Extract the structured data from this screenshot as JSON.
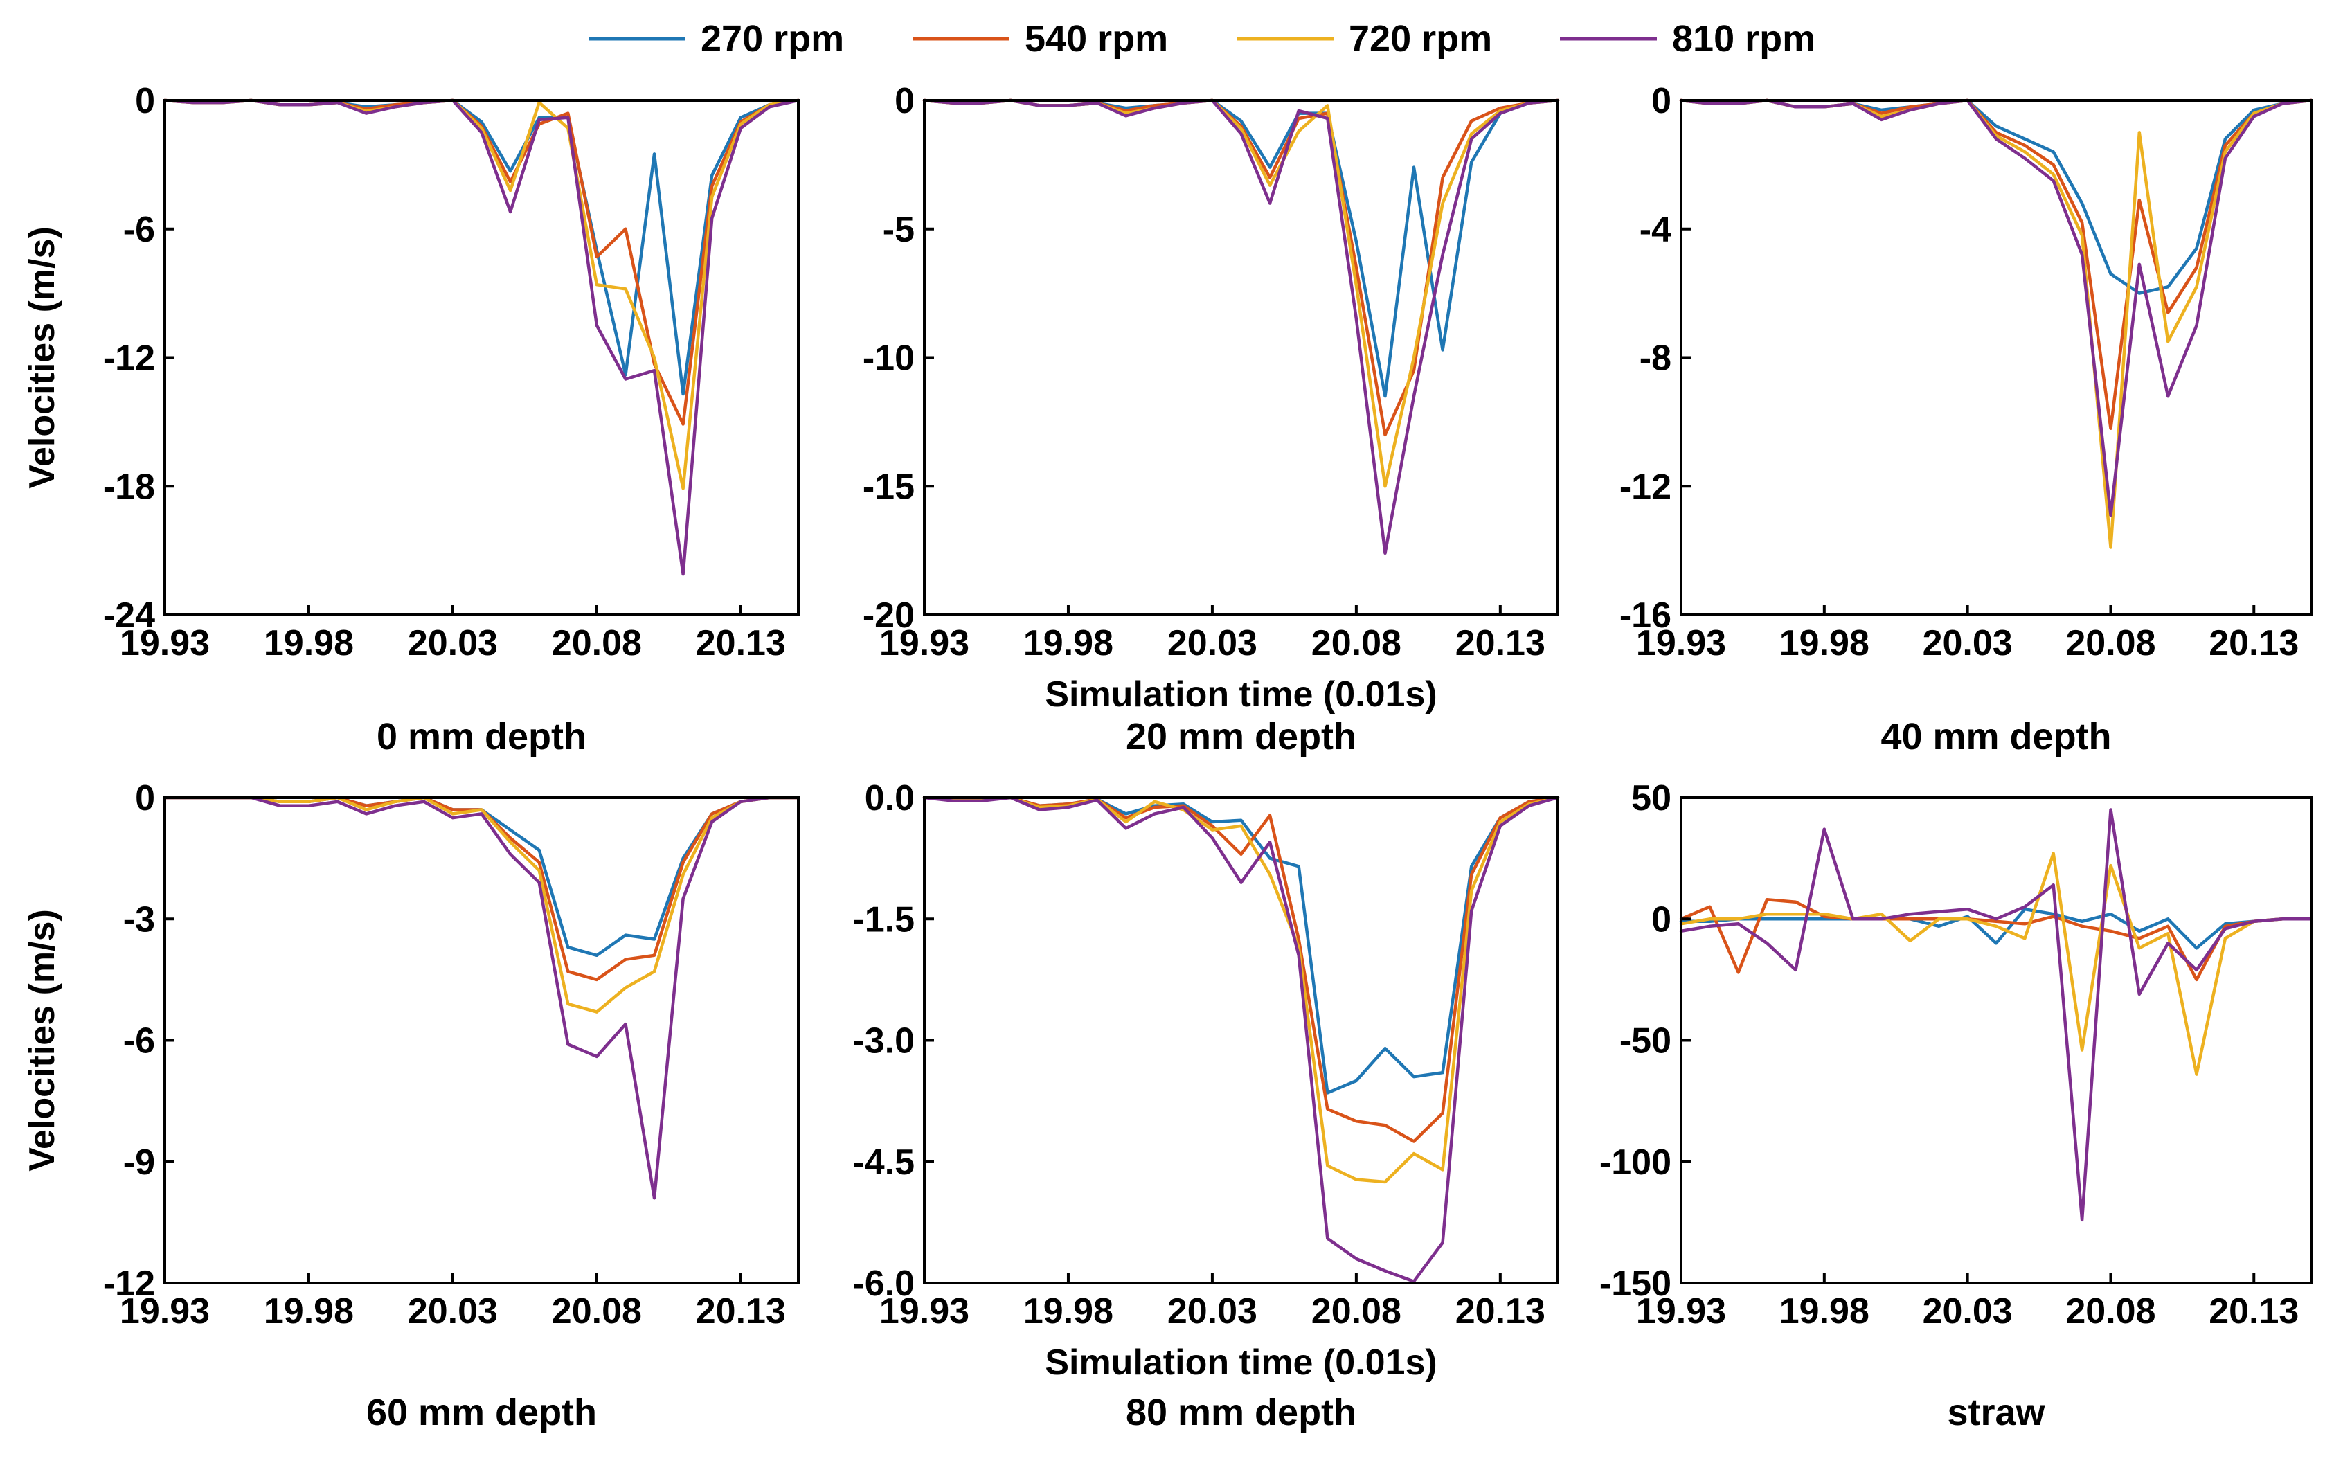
{
  "legend": [
    {
      "label": "270 rpm",
      "color": "#1f77b4"
    },
    {
      "label": "540 rpm",
      "color": "#d95319"
    },
    {
      "label": "720 rpm",
      "color": "#edb120"
    },
    {
      "label": "810 rpm",
      "color": "#7e2f8e"
    }
  ],
  "ylabel": "Velocities (m/s)",
  "xlabel": "Simulation time (0.01s)",
  "chart_data": [
    {
      "type": "line",
      "title": "0 mm depth",
      "ylabel": "Velocities (m/s)",
      "xlim": [
        19.93,
        20.15
      ],
      "ylim": [
        -24,
        0
      ],
      "xticks": [
        19.93,
        19.98,
        20.03,
        20.08,
        20.13
      ],
      "xtick_labels": [
        "19.93",
        "19.98",
        "20.03",
        "20.08",
        "20.13"
      ],
      "yticks": [
        0,
        -6,
        -12,
        -18,
        -24
      ],
      "ytick_labels": [
        "0",
        "-6",
        "-12",
        "-18",
        "-24"
      ],
      "x": [
        19.93,
        19.94,
        19.95,
        19.96,
        19.97,
        19.98,
        19.99,
        20.0,
        20.01,
        20.02,
        20.03,
        20.04,
        20.05,
        20.06,
        20.07,
        20.08,
        20.09,
        20.1,
        20.11,
        20.12,
        20.13,
        20.14,
        20.15
      ],
      "series": [
        {
          "name": "270 rpm",
          "values": [
            0,
            -0.1,
            -0.1,
            0,
            -0.2,
            -0.2,
            -0.1,
            -0.3,
            -0.2,
            -0.1,
            0,
            -1.0,
            -3.3,
            -0.8,
            -0.8,
            -7.0,
            -12.8,
            -2.5,
            -13.7,
            -3.5,
            -0.8,
            -0.2,
            0
          ]
        },
        {
          "name": "540 rpm",
          "values": [
            0,
            -0.1,
            -0.1,
            0,
            -0.2,
            -0.2,
            -0.1,
            -0.4,
            -0.2,
            -0.1,
            0,
            -1.2,
            -3.8,
            -1.1,
            -0.6,
            -7.3,
            -6.0,
            -12.3,
            -15.1,
            -4.0,
            -1.0,
            -0.2,
            0
          ]
        },
        {
          "name": "720 rpm",
          "values": [
            0,
            -0.1,
            -0.1,
            0,
            -0.2,
            -0.2,
            -0.1,
            -0.5,
            -0.3,
            -0.1,
            0,
            -1.3,
            -4.2,
            -0.1,
            -1.3,
            -8.6,
            -8.8,
            -12.0,
            -18.1,
            -4.5,
            -1.1,
            -0.2,
            0
          ]
        },
        {
          "name": "810 rpm",
          "values": [
            0,
            -0.1,
            -0.1,
            0,
            -0.2,
            -0.2,
            -0.1,
            -0.6,
            -0.3,
            -0.1,
            0,
            -1.5,
            -5.2,
            -0.9,
            -0.8,
            -10.5,
            -13.0,
            -12.6,
            -22.1,
            -5.5,
            -1.3,
            -0.3,
            0
          ]
        }
      ]
    },
    {
      "type": "line",
      "title": "20 mm depth",
      "ylabel": "",
      "xlabel": "Simulation time (0.01s)",
      "xlim": [
        19.93,
        20.15
      ],
      "ylim": [
        -20,
        0
      ],
      "xticks": [
        19.93,
        19.98,
        20.03,
        20.08,
        20.13
      ],
      "xtick_labels": [
        "19.93",
        "19.98",
        "20.03",
        "20.08",
        "20.13"
      ],
      "yticks": [
        0,
        -5,
        -10,
        -15,
        -20
      ],
      "ytick_labels": [
        "0",
        "-5",
        "-10",
        "-15",
        "-20"
      ],
      "x": [
        19.93,
        19.94,
        19.95,
        19.96,
        19.97,
        19.98,
        19.99,
        20.0,
        20.01,
        20.02,
        20.03,
        20.04,
        20.05,
        20.06,
        20.07,
        20.08,
        20.09,
        20.1,
        20.11,
        20.12,
        20.13,
        20.14,
        20.15
      ],
      "series": [
        {
          "name": "270 rpm",
          "values": [
            0,
            -0.1,
            -0.1,
            0,
            -0.2,
            -0.2,
            -0.1,
            -0.3,
            -0.2,
            -0.1,
            0,
            -0.8,
            -2.6,
            -0.5,
            -0.5,
            -5.5,
            -11.5,
            -2.6,
            -9.7,
            -2.4,
            -0.5,
            -0.1,
            0
          ]
        },
        {
          "name": "540 rpm",
          "values": [
            0,
            -0.1,
            -0.1,
            0,
            -0.2,
            -0.2,
            -0.1,
            -0.4,
            -0.2,
            -0.1,
            0,
            -1.0,
            -3.0,
            -0.7,
            -0.5,
            -6.5,
            -13.0,
            -10.5,
            -3.0,
            -0.8,
            -0.3,
            -0.1,
            0
          ]
        },
        {
          "name": "720 rpm",
          "values": [
            0,
            -0.1,
            -0.1,
            0,
            -0.2,
            -0.2,
            -0.1,
            -0.5,
            -0.3,
            -0.1,
            0,
            -1.1,
            -3.3,
            -1.2,
            -0.2,
            -7.2,
            -15.0,
            -10.0,
            -4.0,
            -1.3,
            -0.4,
            -0.1,
            0
          ]
        },
        {
          "name": "810 rpm",
          "values": [
            0,
            -0.1,
            -0.1,
            0,
            -0.2,
            -0.2,
            -0.1,
            -0.6,
            -0.3,
            -0.1,
            0,
            -1.3,
            -4.0,
            -0.4,
            -0.7,
            -8.5,
            -17.6,
            -11.5,
            -6.0,
            -1.5,
            -0.5,
            -0.1,
            0
          ]
        }
      ]
    },
    {
      "type": "line",
      "title": "40 mm depth",
      "ylabel": "",
      "xlim": [
        19.93,
        20.15
      ],
      "ylim": [
        -16,
        0
      ],
      "xticks": [
        19.93,
        19.98,
        20.03,
        20.08,
        20.13
      ],
      "xtick_labels": [
        "19.93",
        "19.98",
        "20.03",
        "20.08",
        "20.13"
      ],
      "yticks": [
        0,
        -4,
        -8,
        -12,
        -16
      ],
      "ytick_labels": [
        "0",
        "-4",
        "-8",
        "-12",
        "-16"
      ],
      "x": [
        19.93,
        19.94,
        19.95,
        19.96,
        19.97,
        19.98,
        19.99,
        20.0,
        20.01,
        20.02,
        20.03,
        20.04,
        20.05,
        20.06,
        20.07,
        20.08,
        20.09,
        20.1,
        20.11,
        20.12,
        20.13,
        20.14,
        20.15
      ],
      "series": [
        {
          "name": "270 rpm",
          "values": [
            0,
            -0.1,
            -0.1,
            0,
            -0.2,
            -0.2,
            -0.1,
            -0.3,
            -0.2,
            -0.1,
            0,
            -0.8,
            -1.2,
            -1.6,
            -3.2,
            -5.4,
            -6.0,
            -5.8,
            -4.6,
            -1.2,
            -0.3,
            -0.1,
            0
          ]
        },
        {
          "name": "540 rpm",
          "values": [
            0,
            -0.1,
            -0.1,
            0,
            -0.2,
            -0.2,
            -0.1,
            -0.4,
            -0.2,
            -0.1,
            0,
            -1.0,
            -1.4,
            -2.0,
            -3.8,
            -10.2,
            -3.1,
            -6.6,
            -5.2,
            -1.4,
            -0.4,
            -0.1,
            0
          ]
        },
        {
          "name": "720 rpm",
          "values": [
            0,
            -0.1,
            -0.1,
            0,
            -0.2,
            -0.2,
            -0.1,
            -0.5,
            -0.3,
            -0.1,
            0,
            -1.1,
            -1.6,
            -2.3,
            -4.2,
            -13.9,
            -1.0,
            -7.5,
            -5.8,
            -1.6,
            -0.4,
            -0.1,
            0
          ]
        },
        {
          "name": "810 rpm",
          "values": [
            0,
            -0.1,
            -0.1,
            0,
            -0.2,
            -0.2,
            -0.1,
            -0.6,
            -0.3,
            -0.1,
            0,
            -1.2,
            -1.8,
            -2.5,
            -4.8,
            -12.9,
            -5.1,
            -9.2,
            -7.0,
            -1.8,
            -0.5,
            -0.1,
            0
          ]
        }
      ]
    },
    {
      "type": "line",
      "title": "60 mm depth",
      "ylabel": "Velocities (m/s)",
      "xlim": [
        19.93,
        20.15
      ],
      "ylim": [
        -12,
        0
      ],
      "xticks": [
        19.93,
        19.98,
        20.03,
        20.08,
        20.13
      ],
      "xtick_labels": [
        "19.93",
        "19.98",
        "20.03",
        "20.08",
        "20.13"
      ],
      "yticks": [
        0,
        -3,
        -6,
        -9,
        -12
      ],
      "ytick_labels": [
        "0",
        "-3",
        "-6",
        "-9",
        "-12"
      ],
      "x": [
        19.93,
        19.94,
        19.95,
        19.96,
        19.97,
        19.98,
        19.99,
        20.0,
        20.01,
        20.02,
        20.03,
        20.04,
        20.05,
        20.06,
        20.07,
        20.08,
        20.09,
        20.1,
        20.11,
        20.12,
        20.13,
        20.14,
        20.15
      ],
      "series": [
        {
          "name": "270 rpm",
          "values": [
            0,
            0,
            0,
            0,
            -0.1,
            -0.1,
            0,
            -0.2,
            -0.1,
            0,
            -0.3,
            -0.3,
            -0.8,
            -1.3,
            -3.7,
            -3.9,
            -3.4,
            -3.5,
            -1.5,
            -0.4,
            -0.1,
            0,
            0
          ]
        },
        {
          "name": "540 rpm",
          "values": [
            0,
            0,
            0,
            0,
            -0.1,
            -0.1,
            0,
            -0.2,
            -0.1,
            0,
            -0.3,
            -0.3,
            -1.0,
            -1.6,
            -4.3,
            -4.5,
            -4.0,
            -3.9,
            -1.6,
            -0.4,
            -0.1,
            0,
            0
          ]
        },
        {
          "name": "720 rpm",
          "values": [
            0,
            0,
            0,
            0,
            -0.1,
            -0.1,
            0,
            -0.3,
            -0.1,
            0,
            -0.4,
            -0.3,
            -1.1,
            -1.8,
            -5.1,
            -5.3,
            -4.7,
            -4.3,
            -1.9,
            -0.5,
            -0.1,
            0,
            0
          ]
        },
        {
          "name": "810 rpm",
          "values": [
            0,
            0,
            0,
            0,
            -0.2,
            -0.2,
            -0.1,
            -0.4,
            -0.2,
            -0.1,
            -0.5,
            -0.4,
            -1.4,
            -2.1,
            -6.1,
            -6.4,
            -5.6,
            -9.9,
            -2.5,
            -0.6,
            -0.1,
            0,
            0
          ]
        }
      ]
    },
    {
      "type": "line",
      "title": "80 mm depth",
      "ylabel": "",
      "xlabel": "Simulation time (0.01s)",
      "xlim": [
        19.93,
        20.15
      ],
      "ylim": [
        -6,
        0
      ],
      "xticks": [
        19.93,
        19.98,
        20.03,
        20.08,
        20.13
      ],
      "xtick_labels": [
        "19.93",
        "19.98",
        "20.03",
        "20.08",
        "20.13"
      ],
      "yticks": [
        0,
        -1.5,
        -3,
        -4.5,
        -6
      ],
      "ytick_labels": [
        "0.0",
        "-1.5",
        "-3.0",
        "-4.5",
        "-6.0"
      ],
      "x": [
        19.93,
        19.94,
        19.95,
        19.96,
        19.97,
        19.98,
        19.99,
        20.0,
        20.01,
        20.02,
        20.03,
        20.04,
        20.05,
        20.06,
        20.07,
        20.08,
        20.09,
        20.1,
        20.11,
        20.12,
        20.13,
        20.14,
        20.15
      ],
      "series": [
        {
          "name": "270 rpm",
          "values": [
            0,
            -0.02,
            -0.02,
            0,
            -0.1,
            -0.08,
            -0.02,
            -0.2,
            -0.1,
            -0.08,
            -0.3,
            -0.28,
            -0.75,
            -0.85,
            -3.65,
            -3.5,
            -3.1,
            -3.45,
            -3.4,
            -0.85,
            -0.25,
            -0.05,
            0
          ]
        },
        {
          "name": "540 rpm",
          "values": [
            0,
            -0.02,
            -0.02,
            0,
            -0.1,
            -0.08,
            -0.02,
            -0.25,
            -0.12,
            -0.1,
            -0.35,
            -0.7,
            -0.22,
            -1.75,
            -3.85,
            -4.0,
            -4.05,
            -4.25,
            -3.9,
            -0.95,
            -0.25,
            -0.05,
            0
          ]
        },
        {
          "name": "720 rpm",
          "values": [
            0,
            -0.02,
            -0.02,
            0,
            -0.12,
            -0.1,
            -0.02,
            -0.3,
            -0.05,
            -0.15,
            -0.4,
            -0.35,
            -0.95,
            -1.85,
            -4.55,
            -4.72,
            -4.75,
            -4.4,
            -4.6,
            -1.15,
            -0.3,
            -0.08,
            0
          ]
        },
        {
          "name": "810 rpm",
          "values": [
            0,
            -0.04,
            -0.04,
            0,
            -0.15,
            -0.12,
            -0.03,
            -0.38,
            -0.2,
            -0.12,
            -0.5,
            -1.05,
            -0.55,
            -1.95,
            -5.45,
            -5.7,
            -5.85,
            -5.98,
            -5.5,
            -1.4,
            -0.35,
            -0.1,
            0
          ]
        }
      ]
    },
    {
      "type": "line",
      "title": "straw",
      "ylabel": "",
      "xlim": [
        19.93,
        20.15
      ],
      "ylim": [
        -150,
        50
      ],
      "xticks": [
        19.93,
        19.98,
        20.03,
        20.08,
        20.13
      ],
      "xtick_labels": [
        "19.93",
        "19.98",
        "20.03",
        "20.08",
        "20.13"
      ],
      "yticks": [
        50,
        0,
        -50,
        -100,
        -150
      ],
      "ytick_labels": [
        "50",
        "0",
        "-50",
        "-100",
        "-150"
      ],
      "x": [
        19.93,
        19.94,
        19.95,
        19.96,
        19.97,
        19.98,
        19.99,
        20.0,
        20.01,
        20.02,
        20.03,
        20.04,
        20.05,
        20.06,
        20.07,
        20.08,
        20.09,
        20.1,
        20.11,
        20.12,
        20.13,
        20.14,
        20.15
      ],
      "series": [
        {
          "name": "270 rpm",
          "values": [
            -1,
            -1,
            0,
            0,
            0,
            0,
            0,
            0,
            0,
            -3,
            1,
            -10,
            4,
            2,
            -1,
            2,
            -5,
            0,
            -12,
            -2,
            -1,
            0,
            0
          ]
        },
        {
          "name": "540 rpm",
          "values": [
            0,
            5,
            -22,
            8,
            7,
            1,
            0,
            0,
            0,
            0,
            0,
            -1,
            -2,
            1,
            -3,
            -5,
            -8,
            -3,
            -25,
            -3,
            -1,
            0,
            0
          ]
        },
        {
          "name": "720 rpm",
          "values": [
            -2,
            0,
            0,
            2,
            2,
            2,
            0,
            2,
            -9,
            0,
            0,
            -3,
            -8,
            27,
            -54,
            22,
            -12,
            -6,
            -64,
            -8,
            -1,
            0,
            0
          ]
        },
        {
          "name": "810 rpm",
          "values": [
            -5,
            -3,
            -2,
            -10,
            -21,
            37,
            0,
            0,
            2,
            3,
            4,
            0,
            5,
            14,
            -124,
            45,
            -31,
            -10,
            -21,
            -4,
            -1,
            0,
            0
          ]
        }
      ]
    }
  ]
}
